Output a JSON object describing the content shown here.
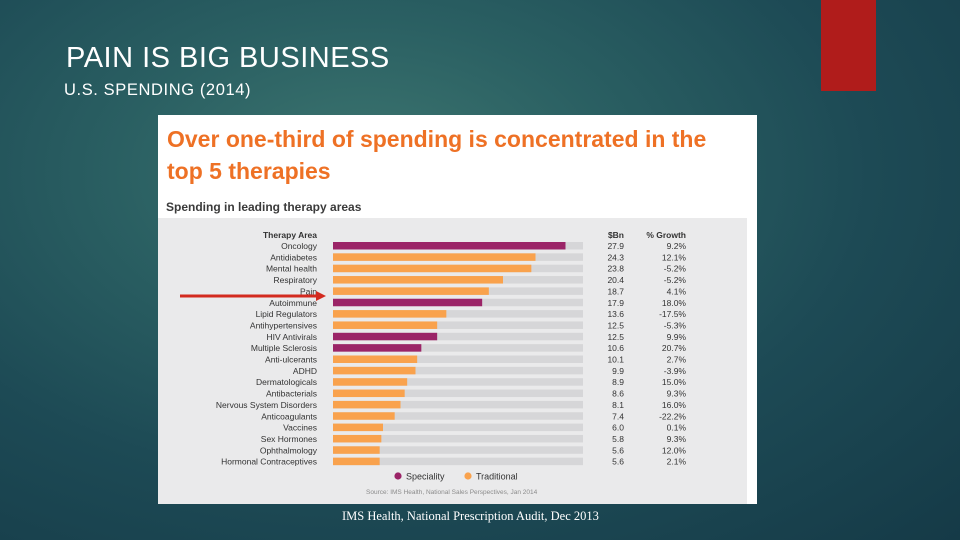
{
  "slide": {
    "title": "PAIN IS BIG BUSINESS",
    "subtitle": "U.S. SPENDING (2014)",
    "footer": "IMS Health, National Prescription Audit, Dec 2013"
  },
  "colors": {
    "accent": "#b01c1b",
    "figure_title": "#ee7125",
    "speciality": "#9b2467",
    "traditional": "#f9a24d",
    "bar_track": "#d6d6d8",
    "arrow": "#d32a1f"
  },
  "chart_data": {
    "type": "bar",
    "orientation": "horizontal",
    "title": "Over one-third of spending is concentrated in the top 5 therapies",
    "subtitle": "Spending in leading therapy areas",
    "category_header": "Therapy Area",
    "value_header": "$Bn",
    "growth_header": "% Growth",
    "xlim": [
      0,
      30
    ],
    "categories": [
      "Oncology",
      "Antidiabetes",
      "Mental health",
      "Respiratory",
      "Pain",
      "Autoimmune",
      "Lipid Regulators",
      "Antihypertensives",
      "HIV Antivirals",
      "Multiple Sclerosis",
      "Anti-ulcerants",
      "ADHD",
      "Dermatologicals",
      "Antibacterials",
      "Nervous System Disorders",
      "Anticoagulants",
      "Vaccines",
      "Sex Hormones",
      "Ophthalmology",
      "Hormonal Contraceptives"
    ],
    "values": [
      27.9,
      24.3,
      23.8,
      20.4,
      18.7,
      17.9,
      13.6,
      12.5,
      12.5,
      10.6,
      10.1,
      9.9,
      8.9,
      8.6,
      8.1,
      7.4,
      6.0,
      5.8,
      5.6,
      5.6
    ],
    "values_text": [
      "27.9",
      "24.3",
      "23.8",
      "20.4",
      "18.7",
      "17.9",
      "13.6",
      "12.5",
      "12.5",
      "10.6",
      "10.1",
      "9.9",
      "8.9",
      "8.6",
      "8.1",
      "7.4",
      "6.0",
      "5.8",
      "5.6",
      "5.6"
    ],
    "growth": [
      "9.2%",
      "12.1%",
      "-5.2%",
      "-5.2%",
      "4.1%",
      "18.0%",
      "-17.5%",
      "-5.3%",
      "9.9%",
      "20.7%",
      "2.7%",
      "-3.9%",
      "15.0%",
      "9.3%",
      "16.0%",
      "-22.2%",
      "0.1%",
      "9.3%",
      "12.0%",
      "2.1%"
    ],
    "series_type": [
      "Speciality",
      "Traditional",
      "Traditional",
      "Traditional",
      "Traditional",
      "Speciality",
      "Traditional",
      "Traditional",
      "Speciality",
      "Speciality",
      "Traditional",
      "Traditional",
      "Traditional",
      "Traditional",
      "Traditional",
      "Traditional",
      "Traditional",
      "Traditional",
      "Traditional",
      "Traditional"
    ],
    "legend": [
      "Speciality",
      "Traditional"
    ],
    "legend_position": "bottom",
    "source": "Source: IMS Health, National Sales Perspectives, Jan 2014",
    "highlighted_category": "Pain"
  }
}
